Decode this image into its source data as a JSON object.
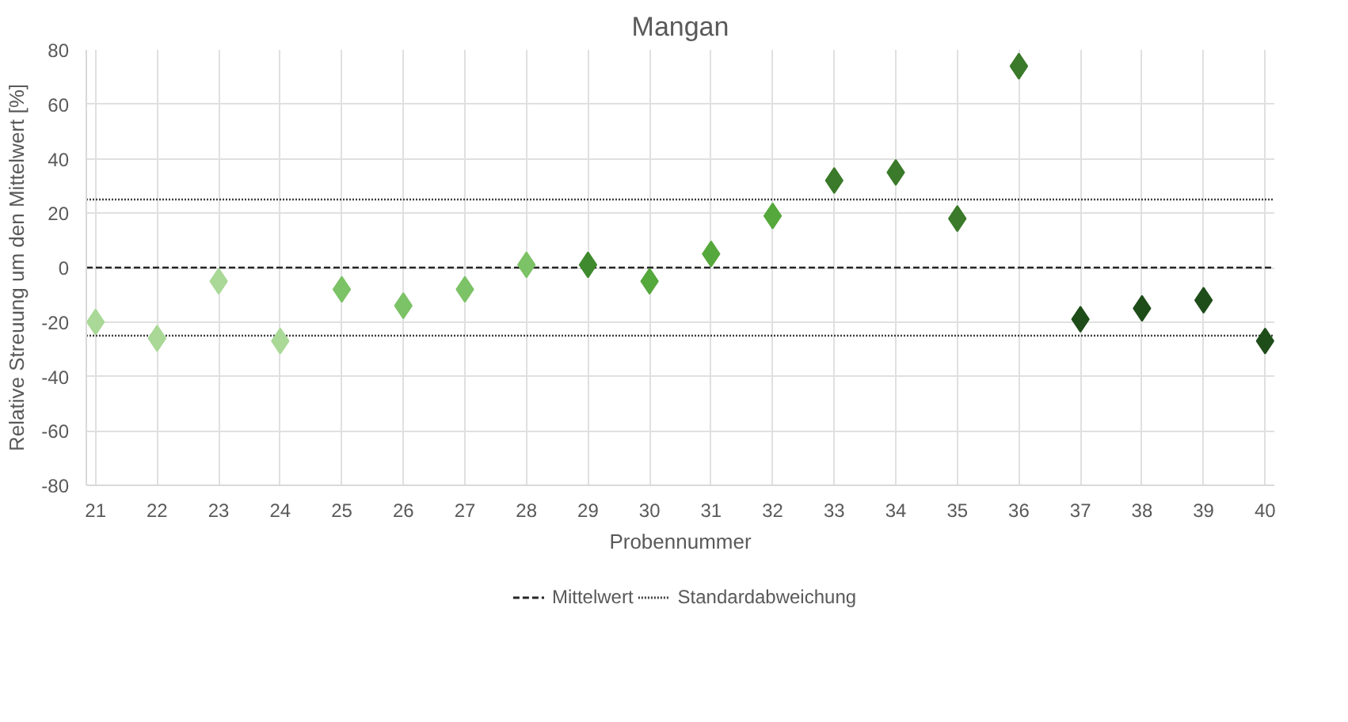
{
  "chart_data": {
    "type": "scatter",
    "title": "Mangan",
    "xlabel": "Probennummer",
    "ylabel": "Relative Streuung um den Mittelwert [%]",
    "categories": [
      "21",
      "22",
      "23",
      "24",
      "25",
      "26",
      "27",
      "28",
      "29",
      "30",
      "31",
      "32",
      "33",
      "34",
      "35",
      "36",
      "37",
      "38",
      "39",
      "40"
    ],
    "values": [
      -20,
      -26,
      -5,
      -27,
      -8,
      -14,
      -8,
      1,
      1,
      -5,
      5,
      19,
      32,
      35,
      18,
      74,
      -19,
      -15,
      -12,
      -27
    ],
    "colors": [
      "#a9d897",
      "#a9d897",
      "#a9d897",
      "#a9d897",
      "#7cc266",
      "#7cc266",
      "#7cc266",
      "#7cc266",
      "#3f8a2e",
      "#55a83c",
      "#55a83c",
      "#55a83c",
      "#3a7a2a",
      "#3a7a2a",
      "#3a7a2a",
      "#3a7a2a",
      "#1f4d1a",
      "#1f4d1a",
      "#1f4d1a",
      "#1f4d1a"
    ],
    "marker": "diamond",
    "ylim": [
      -80,
      80
    ],
    "yticks": [
      -80,
      -60,
      -40,
      -20,
      0,
      20,
      40,
      60,
      80
    ],
    "grid": true,
    "legend": "bottom",
    "ref_lines": [
      {
        "axis": "y",
        "value": 0,
        "label": "Mittelwert",
        "color": "#262626",
        "line_style": "dashed"
      },
      {
        "axis": "y",
        "value": 25,
        "label": "Standardabweichung",
        "color": "#404040",
        "line_style": "dotted"
      },
      {
        "axis": "y",
        "value": -25,
        "label": null,
        "color": "#404040",
        "line_style": "dotted"
      }
    ]
  }
}
